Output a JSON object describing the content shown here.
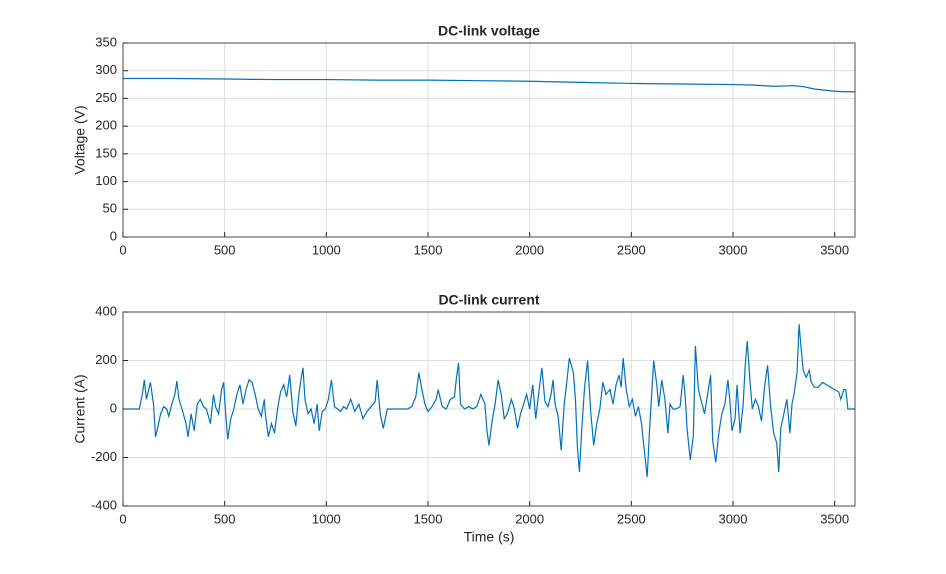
{
  "chart_data": [
    {
      "type": "line",
      "title": "DC-link voltage",
      "ylabel": "Voltage (V)",
      "color": "#0072bd",
      "grid": true,
      "xlim": [
        0,
        3600
      ],
      "xticks": [
        0,
        500,
        1000,
        1500,
        2000,
        2500,
        3000,
        3500
      ],
      "ylim": [
        0,
        350
      ],
      "yticks": [
        0,
        50,
        100,
        150,
        200,
        250,
        300,
        350
      ],
      "x": [
        0,
        250,
        500,
        750,
        1000,
        1250,
        1500,
        1750,
        2000,
        2250,
        2500,
        2750,
        3000,
        3100,
        3200,
        3300,
        3350,
        3400,
        3450,
        3500,
        3550,
        3600
      ],
      "values": [
        286,
        286,
        285,
        284,
        284,
        283,
        283,
        282,
        281,
        279,
        277,
        276,
        275,
        274,
        272,
        273,
        271,
        267,
        265,
        263,
        262,
        262
      ]
    },
    {
      "type": "line",
      "title": "DC-link current",
      "xlabel": "Time (s)",
      "ylabel": "Current (A)",
      "color": "#0072bd",
      "grid": true,
      "xlim": [
        0,
        3600
      ],
      "xticks": [
        0,
        500,
        1000,
        1500,
        2000,
        2500,
        3000,
        3500
      ],
      "ylim": [
        -400,
        400
      ],
      "yticks": [
        -400,
        -200,
        0,
        200,
        400
      ],
      "x": [
        0,
        80,
        95,
        105,
        115,
        135,
        150,
        160,
        170,
        185,
        200,
        215,
        225,
        240,
        255,
        265,
        275,
        290,
        310,
        320,
        335,
        350,
        365,
        380,
        395,
        410,
        430,
        445,
        455,
        470,
        485,
        495,
        505,
        515,
        530,
        545,
        560,
        575,
        590,
        605,
        620,
        635,
        650,
        665,
        680,
        695,
        700,
        715,
        730,
        745,
        760,
        775,
        790,
        805,
        820,
        835,
        850,
        865,
        875,
        885,
        895,
        910,
        925,
        940,
        955,
        965,
        980,
        995,
        1010,
        1025,
        1040,
        1055,
        1070,
        1085,
        1100,
        1120,
        1140,
        1160,
        1180,
        1200,
        1220,
        1240,
        1250,
        1265,
        1280,
        1300,
        1320,
        1350,
        1380,
        1400,
        1420,
        1440,
        1455,
        1470,
        1485,
        1500,
        1520,
        1540,
        1550,
        1570,
        1590,
        1610,
        1630,
        1640,
        1650,
        1660,
        1680,
        1700,
        1720,
        1740,
        1760,
        1780,
        1790,
        1800,
        1815,
        1830,
        1845,
        1860,
        1875,
        1890,
        1910,
        1925,
        1940,
        1955,
        1970,
        1985,
        2000,
        2015,
        2030,
        2045,
        2060,
        2075,
        2090,
        2105,
        2115,
        2125,
        2140,
        2155,
        2170,
        2185,
        2195,
        2205,
        2215,
        2225,
        2235,
        2245,
        2255,
        2270,
        2285,
        2300,
        2315,
        2330,
        2345,
        2360,
        2375,
        2395,
        2410,
        2425,
        2440,
        2450,
        2460,
        2475,
        2490,
        2505,
        2520,
        2535,
        2550,
        2565,
        2578,
        2590,
        2600,
        2610,
        2625,
        2635,
        2650,
        2665,
        2680,
        2690,
        2705,
        2720,
        2740,
        2755,
        2765,
        2775,
        2790,
        2805,
        2815,
        2830,
        2845,
        2860,
        2875,
        2890,
        2900,
        2915,
        2930,
        2945,
        2960,
        2975,
        2985,
        2995,
        3010,
        3020,
        3035,
        3050,
        3060,
        3070,
        3085,
        3095,
        3110,
        3125,
        3140,
        3155,
        3170,
        3185,
        3200,
        3215,
        3225,
        3235,
        3250,
        3265,
        3280,
        3290,
        3300,
        3315,
        3325,
        3335,
        3345,
        3360,
        3375,
        3385,
        3400,
        3420,
        3440,
        3460,
        3480,
        3500,
        3520,
        3530,
        3545,
        3555,
        3565,
        3600
      ],
      "values": [
        0,
        0,
        60,
        120,
        40,
        110,
        20,
        -115,
        -80,
        -20,
        10,
        0,
        -30,
        20,
        60,
        115,
        40,
        0,
        -60,
        -115,
        -20,
        -90,
        20,
        40,
        10,
        0,
        -60,
        60,
        10,
        -20,
        80,
        110,
        -20,
        -125,
        -40,
        0,
        60,
        100,
        20,
        80,
        120,
        110,
        60,
        0,
        -30,
        40,
        -20,
        -115,
        -60,
        -100,
        0,
        70,
        100,
        50,
        140,
        -10,
        -70,
        60,
        120,
        170,
        40,
        -20,
        0,
        -60,
        20,
        -90,
        -10,
        0,
        40,
        120,
        10,
        0,
        -10,
        10,
        0,
        40,
        -10,
        20,
        -40,
        -10,
        10,
        30,
        120,
        -20,
        -80,
        0,
        0,
        0,
        0,
        0,
        10,
        50,
        150,
        80,
        20,
        -10,
        10,
        40,
        80,
        10,
        0,
        40,
        50,
        130,
        190,
        20,
        0,
        10,
        0,
        10,
        60,
        20,
        -90,
        -150,
        -50,
        20,
        120,
        60,
        -40,
        -20,
        40,
        0,
        -80,
        -20,
        20,
        60,
        0,
        100,
        -40,
        70,
        170,
        30,
        10,
        60,
        120,
        20,
        -30,
        -170,
        20,
        130,
        210,
        180,
        150,
        40,
        -160,
        -260,
        -100,
        90,
        200,
        -10,
        -150,
        -60,
        0,
        110,
        60,
        80,
        20,
        100,
        140,
        90,
        210,
        80,
        10,
        40,
        -30,
        10,
        -60,
        -180,
        -280,
        -80,
        60,
        200,
        100,
        10,
        120,
        40,
        -100,
        20,
        0,
        0,
        10,
        140,
        50,
        -90,
        -210,
        -110,
        260,
        80,
        30,
        -20,
        60,
        140,
        -130,
        -220,
        -100,
        -20,
        20,
        120,
        30,
        -90,
        -40,
        100,
        -100,
        20,
        180,
        280,
        100,
        0,
        40,
        10,
        -50,
        90,
        180,
        10,
        -100,
        -140,
        -260,
        -80,
        -20,
        40,
        -100,
        20,
        60,
        150,
        350,
        250,
        160,
        130,
        160,
        110,
        90,
        90,
        110,
        100,
        90,
        80,
        70,
        40,
        80,
        80,
        0,
        0
      ]
    }
  ]
}
